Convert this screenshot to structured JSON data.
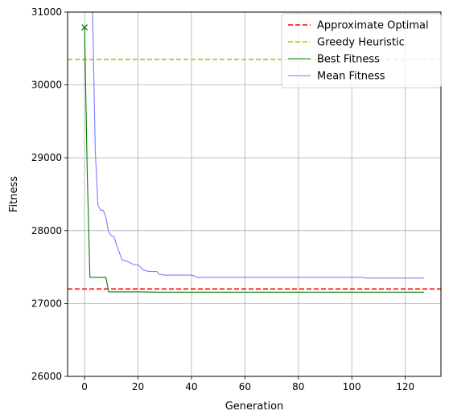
{
  "chart_data": {
    "type": "line",
    "title": "",
    "xlabel": "Generation",
    "ylabel": "Fitness",
    "xlim": [
      -6.35,
      133.35
    ],
    "ylim": [
      26000,
      31000
    ],
    "xticks": [
      0,
      20,
      40,
      60,
      80,
      100,
      120
    ],
    "yticks": [
      26000,
      27000,
      28000,
      29000,
      30000,
      31000
    ],
    "grid": true,
    "legend_position": "top-right",
    "hlines": [
      {
        "name": "Approximate Optimal",
        "y": 27200,
        "color": "#ff0000",
        "dash": "dashed"
      },
      {
        "name": "Greedy Heuristic",
        "y": 30350,
        "color": "#bfbf00",
        "dash": "dashed"
      }
    ],
    "series": [
      {
        "name": "Best Fitness",
        "color": "#008000",
        "x": [
          0,
          1,
          2,
          3,
          4,
          5,
          6,
          7,
          8,
          9,
          10,
          20,
          28,
          40,
          60,
          80,
          100,
          127
        ],
        "y": [
          30790,
          28800,
          27360,
          27360,
          27360,
          27360,
          27360,
          27360,
          27360,
          27160,
          27160,
          27160,
          27155,
          27155,
          27155,
          27155,
          27155,
          27155
        ]
      },
      {
        "name": "Mean Fitness",
        "color": "#7b7bff",
        "x": [
          3,
          4,
          5,
          6,
          7,
          8,
          9,
          10,
          11,
          12,
          13,
          14,
          15,
          16,
          17,
          18,
          19,
          20,
          21,
          22,
          23,
          24,
          25,
          26,
          27,
          28,
          30,
          35,
          40,
          41,
          42,
          50,
          60,
          70,
          80,
          90,
          100,
          104,
          105,
          110,
          120,
          127
        ],
        "y": [
          31000,
          29100,
          28350,
          28280,
          28280,
          28180,
          27980,
          27930,
          27920,
          27800,
          27700,
          27600,
          27590,
          27580,
          27560,
          27540,
          27530,
          27530,
          27500,
          27460,
          27450,
          27440,
          27440,
          27440,
          27440,
          27400,
          27390,
          27390,
          27390,
          27380,
          27360,
          27360,
          27360,
          27360,
          27360,
          27360,
          27360,
          27360,
          27350,
          27350,
          27350,
          27350
        ]
      }
    ],
    "markers": [
      {
        "x": 0,
        "y": 30790,
        "symbol": "x",
        "color": "#008000"
      }
    ]
  }
}
